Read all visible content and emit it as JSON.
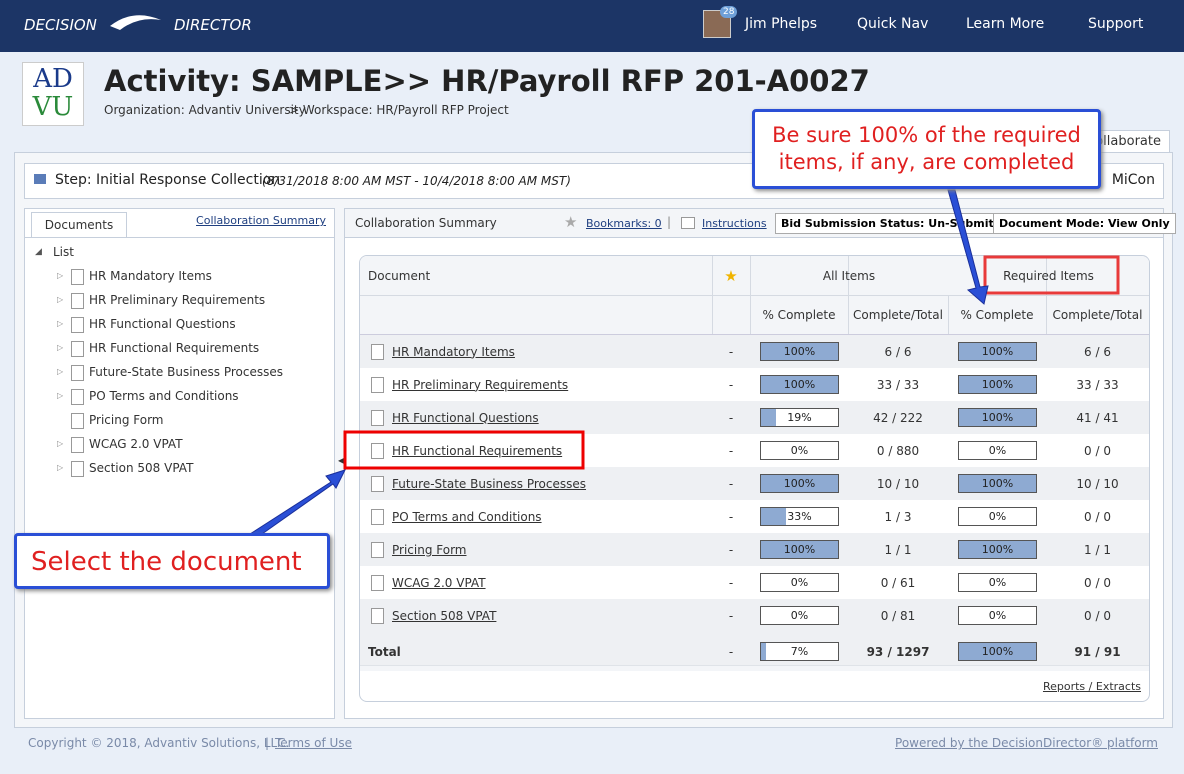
{
  "header": {
    "brand_left": "DECISION",
    "brand_right": "DIRECTOR",
    "badge": "28",
    "user": "Jim Phelps",
    "nav": [
      "Quick Nav",
      "Learn More",
      "Support"
    ]
  },
  "activity": {
    "logo": [
      "AD",
      "VU"
    ],
    "title": "Activity: SAMPLE>> HR/Payroll RFP 201-A0027",
    "organization": "Organization: Advantiv University",
    "workspace": "> Workspace: HR/Payroll RFP Project",
    "tab": "Collaborate"
  },
  "step": {
    "label": "Step: Initial Response Collection",
    "dates": "(8/31/2018 8:00 AM MST - 10/4/2018 8:00 AM MST)",
    "right": "MiCon"
  },
  "left_panel": {
    "tab": "Documents",
    "link": "Collaboration Summary",
    "root": "List",
    "items": [
      "HR Mandatory Items",
      "HR Preliminary Requirements",
      "HR Functional Questions",
      "HR Functional Requirements",
      "Future-State Business Processes",
      "PO Terms and Conditions",
      "Pricing Form",
      "WCAG 2.0 VPAT",
      "Section 508 VPAT"
    ]
  },
  "right_panel": {
    "title": "Collaboration Summary",
    "bookmarks": "Bookmarks: 0",
    "instructions": "Instructions",
    "status": "Bid Submission Status: Un-Submitted",
    "mode": "Document Mode: View Only"
  },
  "table": {
    "headers": {
      "document": "Document",
      "all": "All Items",
      "required": "Required Items",
      "pct": "% Complete",
      "ct": "Complete/Total",
      "pct2": "% Complete",
      "ct2": "Complete/Total"
    },
    "rows": [
      {
        "name": "HR Mandatory Items",
        "bookmark": "-",
        "all_pct": {
          "value": 100,
          "label": "100%"
        },
        "all_ct": "6 / 6",
        "req_pct": {
          "value": 100,
          "label": "100%"
        },
        "req_ct": "6 / 6"
      },
      {
        "name": "HR Preliminary Requirements",
        "bookmark": "-",
        "all_pct": {
          "value": 100,
          "label": "100%"
        },
        "all_ct": "33 / 33",
        "req_pct": {
          "value": 100,
          "label": "100%"
        },
        "req_ct": "33 / 33"
      },
      {
        "name": "HR Functional Questions",
        "bookmark": "-",
        "all_pct": {
          "value": 19,
          "label": "19%"
        },
        "all_ct": "42 / 222",
        "req_pct": {
          "value": 100,
          "label": "100%"
        },
        "req_ct": "41 / 41"
      },
      {
        "name": "HR Functional Requirements",
        "bookmark": "-",
        "all_pct": {
          "value": 0,
          "label": "0%"
        },
        "all_ct": "0 / 880",
        "req_pct": {
          "value": 0,
          "label": "0%"
        },
        "req_ct": "0 / 0"
      },
      {
        "name": "Future-State Business Processes",
        "bookmark": "-",
        "all_pct": {
          "value": 100,
          "label": "100%"
        },
        "all_ct": "10 / 10",
        "req_pct": {
          "value": 100,
          "label": "100%"
        },
        "req_ct": "10 / 10"
      },
      {
        "name": "PO Terms and Conditions",
        "bookmark": "-",
        "all_pct": {
          "value": 33,
          "label": "33%"
        },
        "all_ct": "1 / 3",
        "req_pct": {
          "value": 0,
          "label": "0%"
        },
        "req_ct": "0 / 0"
      },
      {
        "name": "Pricing Form",
        "bookmark": "-",
        "all_pct": {
          "value": 100,
          "label": "100%"
        },
        "all_ct": "1 / 1",
        "req_pct": {
          "value": 100,
          "label": "100%"
        },
        "req_ct": "1 / 1"
      },
      {
        "name": "WCAG 2.0 VPAT",
        "bookmark": "-",
        "all_pct": {
          "value": 0,
          "label": "0%"
        },
        "all_ct": "0 / 61",
        "req_pct": {
          "value": 0,
          "label": "0%"
        },
        "req_ct": "0 / 0"
      },
      {
        "name": "Section 508 VPAT",
        "bookmark": "-",
        "all_pct": {
          "value": 0,
          "label": "0%"
        },
        "all_ct": "0 / 81",
        "req_pct": {
          "value": 0,
          "label": "0%"
        },
        "req_ct": "0 / 0"
      }
    ],
    "total": {
      "name": "Total",
      "bookmark": "-",
      "all_pct": {
        "value": 7,
        "label": "7%"
      },
      "all_ct": "93 / 1297",
      "req_pct": {
        "value": 100,
        "label": "100%"
      },
      "req_ct": "91 / 91"
    },
    "footer_link": "Reports / Extracts"
  },
  "callouts": {
    "top": "Be sure 100% of the required items, if any, are completed",
    "bottom": "Select the document"
  },
  "footer": {
    "copyright": "Copyright © 2018, Advantiv Solutions, LLC.",
    "terms": "Terms of Use",
    "powered": "Powered by the DecisionDirector® platform"
  }
}
